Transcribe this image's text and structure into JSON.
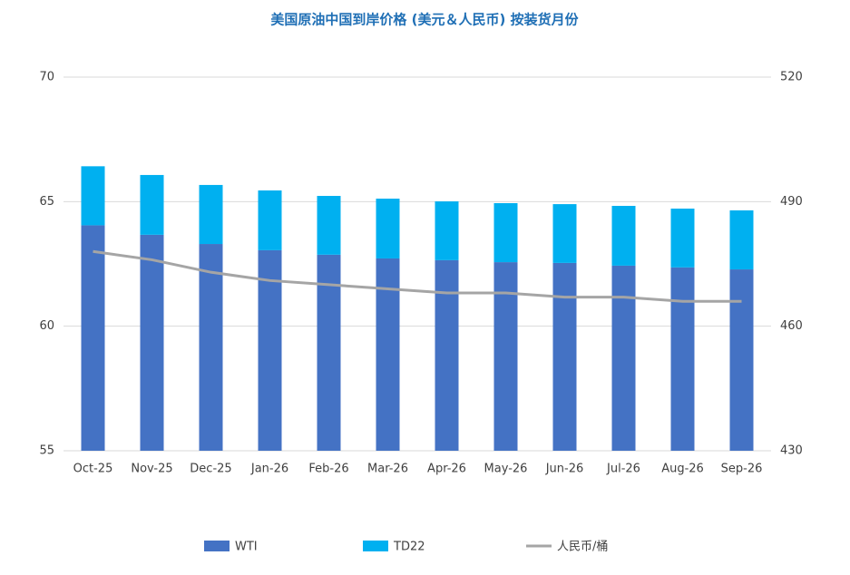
{
  "chart_data": {
    "type": "bar",
    "stacked": true,
    "title": "美国原油中国到岸价格 (美元＆人民币) 按装货月份",
    "categories": [
      "Oct-25",
      "Nov-25",
      "Dec-25",
      "Jan-26",
      "Feb-26",
      "Mar-26",
      "Apr-26",
      "May-26",
      "Jun-26",
      "Jul-26",
      "Aug-26",
      "Sep-26"
    ],
    "series": [
      {
        "name": "WTI",
        "type": "bar",
        "color": "#4472c4",
        "values": [
          64.05,
          63.67,
          63.3,
          63.05,
          62.87,
          62.72,
          62.65,
          62.57,
          62.54,
          62.43,
          62.36,
          62.28
        ]
      },
      {
        "name": "TD22",
        "type": "bar",
        "color": "#00b0f0",
        "values": [
          2.37,
          2.4,
          2.37,
          2.4,
          2.36,
          2.4,
          2.36,
          2.37,
          2.36,
          2.4,
          2.36,
          2.37
        ]
      },
      {
        "name": "人民币/桶",
        "type": "line",
        "axis": "y2",
        "color": "#a5a5a5",
        "values": [
          478,
          476,
          473,
          471,
          470,
          469,
          468,
          468,
          467,
          467,
          466,
          466
        ]
      }
    ],
    "ylim": [
      55,
      70
    ],
    "yticks": [
      55,
      60,
      65,
      70
    ],
    "y2lim": [
      430,
      520
    ],
    "y2ticks": [
      430,
      460,
      490,
      520
    ],
    "grid": true,
    "legend": "bottom"
  }
}
